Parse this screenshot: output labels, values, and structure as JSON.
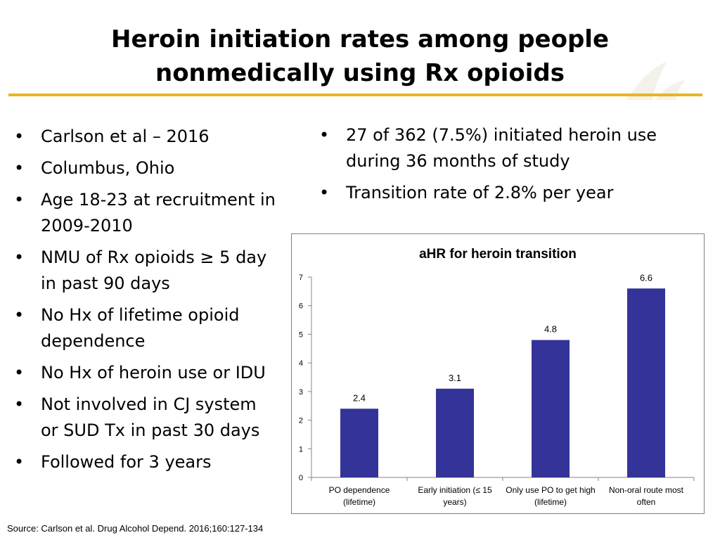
{
  "slide": {
    "title_line1": "Heroin initiation rates among people",
    "title_line2": "nonmedically using Rx opioids",
    "accent_color": "#e8b520",
    "bullet_char": "•"
  },
  "left_bullets": [
    "Carlson et al – 2016",
    "Columbus, Ohio",
    "Age 18-23 at recruitment in 2009-2010",
    "NMU of Rx opioids ≥ 5 day in past 90 days",
    "No Hx of lifetime opioid dependence",
    "No Hx of heroin use or IDU",
    "Not involved in CJ system or SUD Tx in past 30 days",
    "Followed for 3 years"
  ],
  "right_bullets": [
    "27 of 362 (7.5%) initiated heroin use during 36 months of study",
    "Transition rate of 2.8% per year"
  ],
  "source": "Source: Carlson et al. Drug Alcohol Depend. 2016;160:127-134",
  "chart_data": {
    "type": "bar",
    "title": "aHR for heroin transition",
    "categories": [
      [
        "PO dependence",
        "(lifetime)"
      ],
      [
        "Early initiation (≤ 15",
        "years)"
      ],
      [
        "Only use PO to get high",
        "(lifetime)"
      ],
      [
        "Non-oral route most",
        "often"
      ]
    ],
    "values": [
      2.4,
      3.1,
      4.8,
      6.6
    ],
    "value_labels": [
      "2.4",
      "3.1",
      "4.8",
      "6.6"
    ],
    "ylim": [
      0,
      7
    ],
    "yticks": [
      0,
      1,
      2,
      3,
      4,
      5,
      6,
      7
    ],
    "bar_color": "#333399",
    "grid": false,
    "legend": "none"
  }
}
